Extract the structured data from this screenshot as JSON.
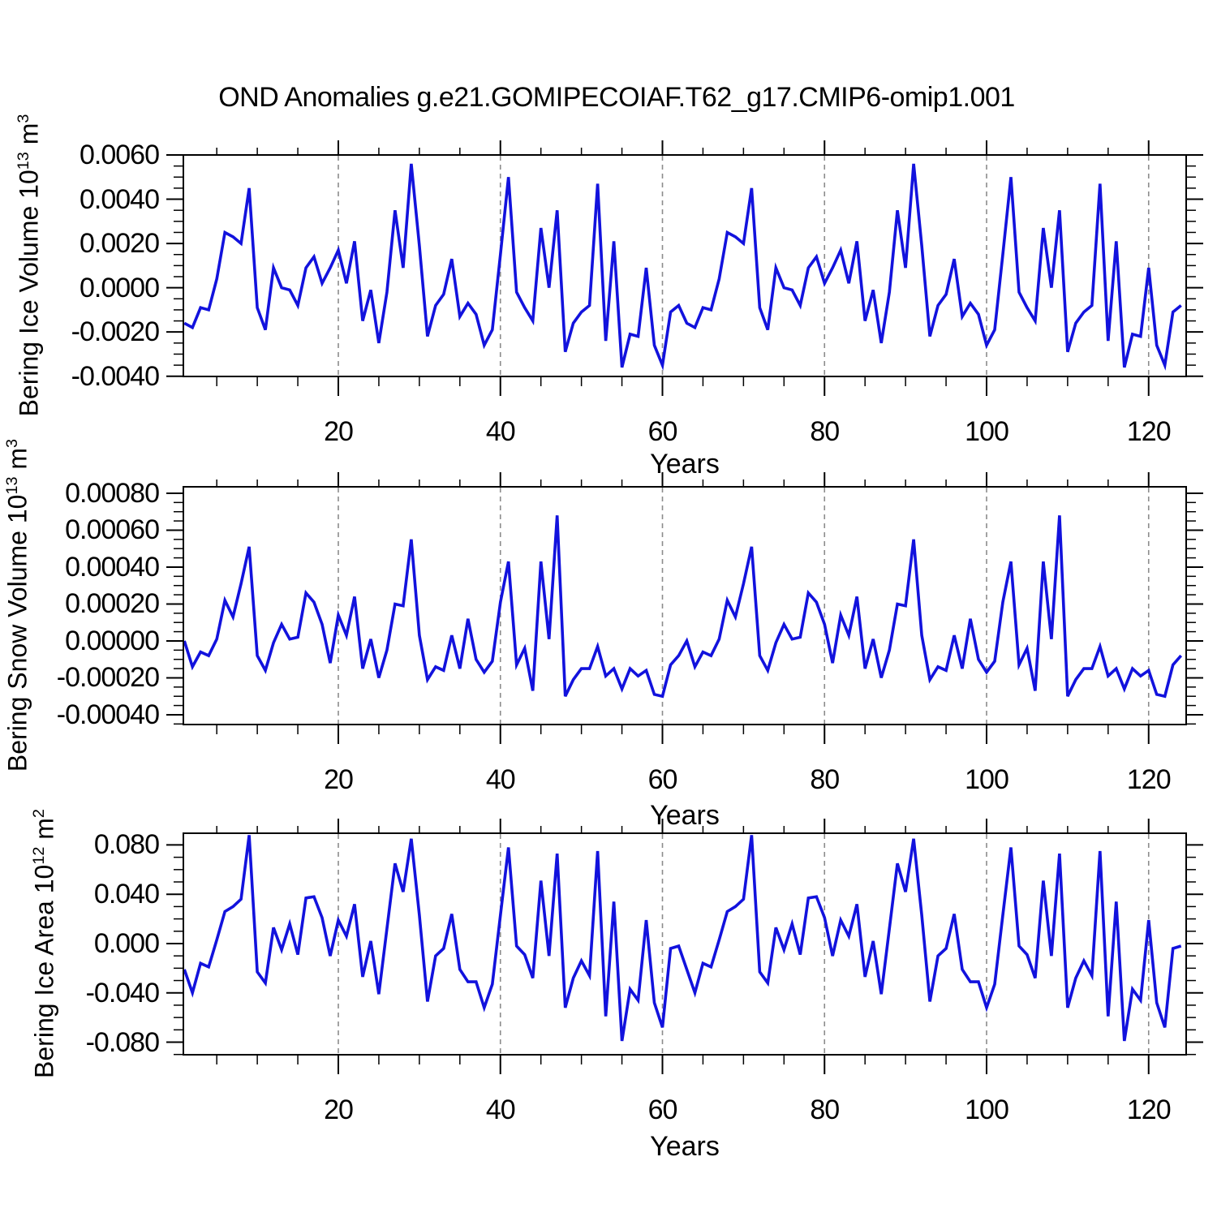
{
  "title": "OND Anomalies g.e21.GOMIPECOIAF.T62_g17.CMIP6-omip1.001",
  "x_axis": {
    "label": "Years",
    "major_ticks": [
      20,
      40,
      60,
      80,
      100,
      120
    ],
    "major_tick_labels": [
      "20",
      "40",
      "60",
      "80",
      "100",
      "120"
    ],
    "minor_step": 5,
    "x_start_year": 1,
    "x_end_year": 124
  },
  "style": {
    "line_color": "#1212dd",
    "grid_color": "#8c8c8c",
    "axis_color": "#000000",
    "background": "#ffffff"
  },
  "chart_data": [
    {
      "type": "line",
      "name": "bering-ice-volume",
      "ylabel": {
        "base": "Bering Ice Volume 10",
        "exp": "13",
        "unit": " m",
        "unit_exp": "3"
      },
      "ylim": [
        -0.00401,
        0.006
      ],
      "y_major_ticks": [
        0.006,
        0.004,
        0.002,
        0.0,
        -0.002,
        -0.004
      ],
      "y_tick_labels": [
        "0.0060",
        "0.0040",
        "0.0020",
        "0.0000",
        "-0.0020",
        "-0.0040"
      ],
      "y_minor_step": 0.0005,
      "x_start": 1,
      "values": [
        -0.0016,
        -0.0018,
        -0.0009,
        -0.001,
        0.0004,
        0.0025,
        0.0023,
        0.002,
        0.0045,
        -0.0009,
        -0.0019,
        0.0009,
        0.0,
        -0.0001,
        -0.0008,
        0.0009,
        0.0014,
        0.0002,
        0.0009,
        0.0017,
        0.0002,
        0.0021,
        -0.0015,
        -0.0001,
        -0.0025,
        -0.0002,
        0.0035,
        0.0009,
        0.0056,
        0.0019,
        -0.0022,
        -0.0008,
        -0.0003,
        0.0013,
        -0.0013,
        -0.0007,
        -0.0012,
        -0.0026,
        -0.0019,
        0.0015,
        0.005,
        -0.0002,
        -0.0009,
        -0.0015,
        0.0027,
        0.0,
        0.0035,
        -0.0029,
        -0.0016,
        -0.0011,
        -0.0008,
        0.0047,
        -0.0024,
        0.0021,
        -0.0036,
        -0.0021,
        -0.0022,
        0.0009,
        -0.0026,
        -0.0035,
        -0.0011,
        -0.0008,
        -0.0016,
        -0.0018,
        -0.0009,
        -0.001,
        0.0004,
        0.0025,
        0.0023,
        0.002,
        0.0045,
        -0.0009,
        -0.0019,
        0.0009,
        0.0,
        -0.0001,
        -0.0008,
        0.0009,
        0.0014,
        0.0002,
        0.0009,
        0.0017,
        0.0002,
        0.0021,
        -0.0015,
        -0.0001,
        -0.0025,
        -0.0002,
        0.0035,
        0.0009,
        0.0056,
        0.0019,
        -0.0022,
        -0.0008,
        -0.0003,
        0.0013,
        -0.0013,
        -0.0007,
        -0.0012,
        -0.0026,
        -0.0019,
        0.0015,
        0.005,
        -0.0002,
        -0.0009,
        -0.0015,
        0.0027,
        0.0,
        0.0035,
        -0.0029,
        -0.0016,
        -0.0011,
        -0.0008,
        0.0047,
        -0.0024,
        0.0021,
        -0.0036,
        -0.0021,
        -0.0022,
        0.0009,
        -0.0026,
        -0.0035,
        -0.0011,
        -0.0008
      ]
    },
    {
      "type": "line",
      "name": "bering-snow-volume",
      "ylabel": {
        "base": "Bering Snow Volume 10",
        "exp": "13",
        "unit": " m",
        "unit_exp": "3"
      },
      "ylim": [
        -0.000453,
        0.000835
      ],
      "y_major_ticks": [
        0.0008,
        0.0006,
        0.0004,
        0.0002,
        0.0,
        -0.0002,
        -0.0004
      ],
      "y_tick_labels": [
        "0.00080",
        "0.00060",
        "0.00040",
        "0.00020",
        "0.00000",
        "-0.00020",
        "-0.00040"
      ],
      "y_minor_step": 5e-05,
      "x_start": 1,
      "values": [
        0.0,
        -0.00014,
        -6e-05,
        -8e-05,
        1e-05,
        0.00022,
        0.00013,
        0.00031,
        0.00051,
        -8e-05,
        -0.00016,
        -1e-05,
        9e-05,
        1e-05,
        2e-05,
        0.00026,
        0.00021,
        9e-05,
        -0.00012,
        0.00014,
        3e-05,
        0.00024,
        -0.00015,
        1e-05,
        -0.0002,
        -5e-05,
        0.0002,
        0.00019,
        0.00055,
        3e-05,
        -0.00021,
        -0.00014,
        -0.00016,
        3e-05,
        -0.00015,
        0.00012,
        -0.0001,
        -0.00017,
        -0.00011,
        0.00021,
        0.00043,
        -0.00013,
        -4e-05,
        -0.00027,
        0.00043,
        1e-05,
        0.00068,
        -0.0003,
        -0.00021,
        -0.00015,
        -0.00015,
        -3e-05,
        -0.00019,
        -0.00015,
        -0.00026,
        -0.00015,
        -0.00019,
        -0.00016,
        -0.00029,
        -0.0003,
        -0.00013,
        -8e-05,
        0.0,
        -0.00014,
        -6e-05,
        -8e-05,
        1e-05,
        0.00022,
        0.00013,
        0.00031,
        0.00051,
        -8e-05,
        -0.00016,
        -1e-05,
        9e-05,
        1e-05,
        2e-05,
        0.00026,
        0.00021,
        9e-05,
        -0.00012,
        0.00014,
        3e-05,
        0.00024,
        -0.00015,
        1e-05,
        -0.0002,
        -5e-05,
        0.0002,
        0.00019,
        0.00055,
        3e-05,
        -0.00021,
        -0.00014,
        -0.00016,
        3e-05,
        -0.00015,
        0.00012,
        -0.0001,
        -0.00017,
        -0.00011,
        0.00021,
        0.00043,
        -0.00013,
        -4e-05,
        -0.00027,
        0.00043,
        1e-05,
        0.00068,
        -0.0003,
        -0.00021,
        -0.00015,
        -0.00015,
        -3e-05,
        -0.00019,
        -0.00015,
        -0.00026,
        -0.00015,
        -0.00019,
        -0.00016,
        -0.00029,
        -0.0003,
        -0.00013,
        -8e-05
      ]
    },
    {
      "type": "line",
      "name": "bering-ice-area",
      "ylabel": {
        "base": "Bering Ice Area 10",
        "exp": "12",
        "unit": " m",
        "unit_exp": "2"
      },
      "ylim": [
        -0.0902,
        0.0895
      ],
      "y_major_ticks": [
        0.08,
        0.04,
        0.0,
        -0.04,
        -0.08
      ],
      "y_tick_labels": [
        "0.080",
        "0.040",
        "0.000",
        "-0.040",
        "-0.080"
      ],
      "y_minor_step": 0.01,
      "x_start": 1,
      "values": [
        -0.021,
        -0.04,
        -0.016,
        -0.019,
        0.003,
        0.026,
        0.03,
        0.036,
        0.088,
        -0.023,
        -0.032,
        0.013,
        -0.005,
        0.016,
        -0.009,
        0.037,
        0.038,
        0.021,
        -0.01,
        0.019,
        0.006,
        0.032,
        -0.027,
        0.002,
        -0.041,
        0.012,
        0.065,
        0.042,
        0.085,
        0.023,
        -0.047,
        -0.01,
        -0.004,
        0.024,
        -0.021,
        -0.031,
        -0.031,
        -0.052,
        -0.033,
        0.023,
        0.078,
        -0.002,
        -0.009,
        -0.028,
        0.051,
        -0.01,
        0.073,
        -0.052,
        -0.028,
        -0.014,
        -0.026,
        0.075,
        -0.059,
        0.034,
        -0.079,
        -0.037,
        -0.046,
        0.019,
        -0.048,
        -0.068,
        -0.004,
        -0.002,
        -0.021,
        -0.04,
        -0.016,
        -0.019,
        0.003,
        0.026,
        0.03,
        0.036,
        0.088,
        -0.023,
        -0.032,
        0.013,
        -0.005,
        0.016,
        -0.009,
        0.037,
        0.038,
        0.021,
        -0.01,
        0.019,
        0.006,
        0.032,
        -0.027,
        0.002,
        -0.041,
        0.012,
        0.065,
        0.042,
        0.085,
        0.023,
        -0.047,
        -0.01,
        -0.004,
        0.024,
        -0.021,
        -0.031,
        -0.031,
        -0.052,
        -0.033,
        0.023,
        0.078,
        -0.002,
        -0.009,
        -0.028,
        0.051,
        -0.01,
        0.073,
        -0.052,
        -0.028,
        -0.014,
        -0.026,
        0.075,
        -0.059,
        0.034,
        -0.079,
        -0.037,
        -0.046,
        0.019,
        -0.048,
        -0.068,
        -0.004,
        -0.002
      ]
    }
  ]
}
